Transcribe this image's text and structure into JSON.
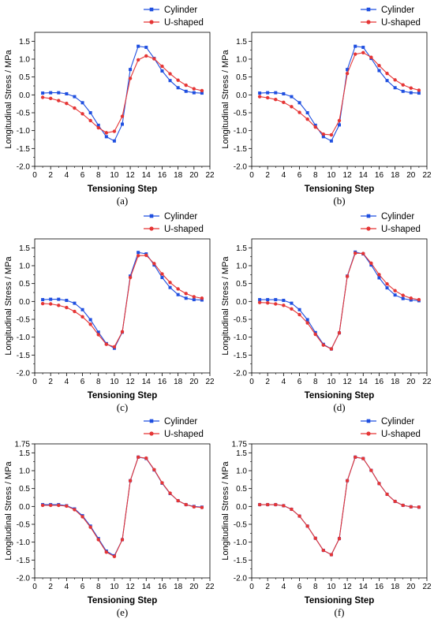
{
  "chart_data": [
    {
      "type": "line",
      "panel_label": "(a)",
      "xlabel": "Tensioning Step",
      "ylabel": "Longitudinal Stress / MPa",
      "xlim": [
        0,
        22
      ],
      "ylim": [
        -2.0,
        1.75
      ],
      "xticks": [
        "0",
        "2",
        "4",
        "6",
        "8",
        "10",
        "12",
        "14",
        "16",
        "18",
        "20",
        "22"
      ],
      "yticks": [
        "-2.0",
        "-1.5",
        "-1.0",
        "-0.5",
        "0.0",
        "0.5",
        "1.0",
        "1.5"
      ],
      "legend_position": "top-right",
      "grid": false,
      "x": [
        1,
        2,
        3,
        4,
        5,
        6,
        7,
        8,
        9,
        10,
        11,
        12,
        13,
        14,
        15,
        16,
        17,
        18,
        19,
        20,
        21
      ],
      "series": [
        {
          "name": "Cylinder",
          "color": "#1f4fe0",
          "marker": "square",
          "values": [
            0.05,
            0.06,
            0.06,
            0.03,
            -0.05,
            -0.22,
            -0.5,
            -0.85,
            -1.17,
            -1.29,
            -0.82,
            0.71,
            1.36,
            1.33,
            1.02,
            0.67,
            0.4,
            0.2,
            0.1,
            0.06,
            0.05
          ]
        },
        {
          "name": "U-shaped",
          "color": "#e53535",
          "marker": "circle",
          "values": [
            -0.07,
            -0.1,
            -0.16,
            -0.24,
            -0.37,
            -0.53,
            -0.72,
            -0.92,
            -1.06,
            -1.02,
            -0.6,
            0.46,
            0.98,
            1.09,
            1.01,
            0.8,
            0.59,
            0.41,
            0.27,
            0.17,
            0.12
          ]
        }
      ]
    },
    {
      "type": "line",
      "panel_label": "(b)",
      "xlabel": "Tensioning Step",
      "ylabel": "Longitudinal Stress / MPa",
      "xlim": [
        0,
        22
      ],
      "ylim": [
        -2.0,
        1.75
      ],
      "xticks": [
        "0",
        "2",
        "4",
        "6",
        "8",
        "10",
        "12",
        "14",
        "16",
        "18",
        "20",
        "22"
      ],
      "yticks": [
        "-2.0",
        "-1.5",
        "-1.0",
        "-0.5",
        "0.0",
        "0.5",
        "1.0",
        "1.5"
      ],
      "legend_position": "top-right",
      "grid": false,
      "x": [
        1,
        2,
        3,
        4,
        5,
        6,
        7,
        8,
        9,
        10,
        11,
        12,
        13,
        14,
        15,
        16,
        17,
        18,
        19,
        20,
        21
      ],
      "series": [
        {
          "name": "Cylinder",
          "color": "#1f4fe0",
          "marker": "square",
          "values": [
            0.05,
            0.06,
            0.06,
            0.03,
            -0.05,
            -0.22,
            -0.5,
            -0.85,
            -1.17,
            -1.29,
            -0.84,
            0.71,
            1.36,
            1.33,
            1.02,
            0.68,
            0.4,
            0.2,
            0.1,
            0.06,
            0.05
          ]
        },
        {
          "name": "U-shaped",
          "color": "#e53535",
          "marker": "circle",
          "values": [
            -0.05,
            -0.08,
            -0.13,
            -0.21,
            -0.33,
            -0.49,
            -0.68,
            -0.9,
            -1.1,
            -1.12,
            -0.72,
            0.6,
            1.14,
            1.18,
            1.05,
            0.82,
            0.6,
            0.42,
            0.28,
            0.19,
            0.13
          ]
        }
      ]
    },
    {
      "type": "line",
      "panel_label": "(c)",
      "xlabel": "Tensioning Step",
      "ylabel": "Longitudinal Stress / MPa",
      "xlim": [
        0,
        22
      ],
      "ylim": [
        -2.0,
        1.75
      ],
      "xticks": [
        "0",
        "2",
        "4",
        "6",
        "8",
        "10",
        "12",
        "14",
        "16",
        "18",
        "20",
        "22"
      ],
      "yticks": [
        "-2.0",
        "-1.5",
        "-1.0",
        "-0.5",
        "0.0",
        "0.5",
        "1.0",
        "1.5"
      ],
      "legend_position": "top-right",
      "grid": false,
      "x": [
        1,
        2,
        3,
        4,
        5,
        6,
        7,
        8,
        9,
        10,
        11,
        12,
        13,
        14,
        15,
        16,
        17,
        18,
        19,
        20,
        21
      ],
      "series": [
        {
          "name": "Cylinder",
          "color": "#1f4fe0",
          "marker": "square",
          "values": [
            0.05,
            0.06,
            0.06,
            0.03,
            -0.05,
            -0.23,
            -0.51,
            -0.86,
            -1.18,
            -1.31,
            -0.86,
            0.71,
            1.37,
            1.33,
            1.02,
            0.67,
            0.39,
            0.19,
            0.09,
            0.05,
            0.04
          ]
        },
        {
          "name": "U-shaped",
          "color": "#e53535",
          "marker": "circle",
          "values": [
            -0.06,
            -0.07,
            -0.11,
            -0.17,
            -0.28,
            -0.43,
            -0.64,
            -0.93,
            -1.2,
            -1.27,
            -0.85,
            0.67,
            1.28,
            1.29,
            1.06,
            0.77,
            0.53,
            0.35,
            0.22,
            0.13,
            0.09
          ]
        }
      ]
    },
    {
      "type": "line",
      "panel_label": "(d)",
      "xlabel": "Tensioning Step",
      "ylabel": "Longitudinal Stress / MPa",
      "xlim": [
        0,
        22
      ],
      "ylim": [
        -2.0,
        1.75
      ],
      "xticks": [
        "0",
        "2",
        "4",
        "6",
        "8",
        "10",
        "12",
        "14",
        "16",
        "18",
        "20",
        "22"
      ],
      "yticks": [
        "-2.0",
        "-1.5",
        "-1.0",
        "-0.5",
        "0.0",
        "0.5",
        "1.0",
        "1.5"
      ],
      "legend_position": "top-right",
      "grid": false,
      "x": [
        1,
        2,
        3,
        4,
        5,
        6,
        7,
        8,
        9,
        10,
        11,
        12,
        13,
        14,
        15,
        16,
        17,
        18,
        19,
        20,
        21
      ],
      "series": [
        {
          "name": "Cylinder",
          "color": "#1f4fe0",
          "marker": "square",
          "values": [
            0.05,
            0.05,
            0.05,
            0.03,
            -0.05,
            -0.23,
            -0.51,
            -0.87,
            -1.2,
            -1.33,
            -0.88,
            0.71,
            1.38,
            1.33,
            1.02,
            0.66,
            0.38,
            0.18,
            0.08,
            0.04,
            0.02
          ]
        },
        {
          "name": "U-shaped",
          "color": "#e53535",
          "marker": "circle",
          "values": [
            -0.03,
            -0.04,
            -0.07,
            -0.11,
            -0.21,
            -0.37,
            -0.6,
            -0.92,
            -1.22,
            -1.33,
            -0.88,
            0.7,
            1.35,
            1.34,
            1.07,
            0.75,
            0.49,
            0.3,
            0.17,
            0.09,
            0.05
          ]
        }
      ]
    },
    {
      "type": "line",
      "panel_label": "(e)",
      "xlabel": "Tensioning Step",
      "ylabel": "Longitudinal Stress / MPa",
      "xlim": [
        0,
        22
      ],
      "ylim": [
        -2.0,
        1.75
      ],
      "xticks": [
        "0",
        "2",
        "4",
        "6",
        "8",
        "10",
        "12",
        "14",
        "16",
        "18",
        "20",
        "22"
      ],
      "yticks": [
        "-2.0",
        "-1.5",
        "-1.0",
        "-0.5",
        "0.0",
        "0.5",
        "1.0",
        "1.5",
        "1.75"
      ],
      "legend_position": "top-right",
      "grid": false,
      "x": [
        1,
        2,
        3,
        4,
        5,
        6,
        7,
        8,
        9,
        10,
        11,
        12,
        13,
        14,
        15,
        16,
        17,
        18,
        19,
        20,
        21
      ],
      "series": [
        {
          "name": "Cylinder",
          "color": "#1f4fe0",
          "marker": "square",
          "values": [
            0.05,
            0.05,
            0.05,
            0.02,
            -0.07,
            -0.26,
            -0.55,
            -0.9,
            -1.25,
            -1.38,
            -0.93,
            0.72,
            1.38,
            1.34,
            1.02,
            0.65,
            0.36,
            0.16,
            0.05,
            0.0,
            -0.02
          ]
        },
        {
          "name": "U-shaped",
          "color": "#e53535",
          "marker": "circle",
          "values": [
            0.03,
            0.03,
            0.03,
            0.01,
            -0.09,
            -0.29,
            -0.58,
            -0.93,
            -1.28,
            -1.4,
            -0.93,
            0.72,
            1.38,
            1.35,
            1.03,
            0.66,
            0.37,
            0.16,
            0.05,
            -0.01,
            -0.03
          ]
        }
      ]
    },
    {
      "type": "line",
      "panel_label": "(f)",
      "xlabel": "Tensioning Step",
      "ylabel": "Longitudinal Stress / MPa",
      "xlim": [
        0,
        22
      ],
      "ylim": [
        -2.0,
        1.75
      ],
      "xticks": [
        "0",
        "2",
        "4",
        "6",
        "8",
        "10",
        "12",
        "14",
        "16",
        "18",
        "20",
        "22"
      ],
      "yticks": [
        "-2.0",
        "-1.5",
        "-1.0",
        "-0.5",
        "0.0",
        "0.5",
        "1.0",
        "1.5",
        "1.75"
      ],
      "legend_position": "top-right",
      "grid": false,
      "x": [
        1,
        2,
        3,
        4,
        5,
        6,
        7,
        8,
        9,
        10,
        11,
        12,
        13,
        14,
        15,
        16,
        17,
        18,
        19,
        20,
        21
      ],
      "series": [
        {
          "name": "Cylinder",
          "color": "#1f4fe0",
          "marker": "square",
          "values": [
            0.05,
            0.05,
            0.05,
            0.02,
            -0.08,
            -0.27,
            -0.55,
            -0.89,
            -1.23,
            -1.35,
            -0.9,
            0.72,
            1.38,
            1.34,
            1.01,
            0.64,
            0.34,
            0.14,
            0.03,
            -0.01,
            -0.02
          ]
        },
        {
          "name": "U-shaped",
          "color": "#e53535",
          "marker": "circle",
          "values": [
            0.05,
            0.05,
            0.05,
            0.02,
            -0.08,
            -0.27,
            -0.55,
            -0.89,
            -1.23,
            -1.35,
            -0.9,
            0.72,
            1.38,
            1.34,
            1.01,
            0.64,
            0.34,
            0.14,
            0.03,
            -0.01,
            -0.02
          ]
        }
      ]
    }
  ]
}
